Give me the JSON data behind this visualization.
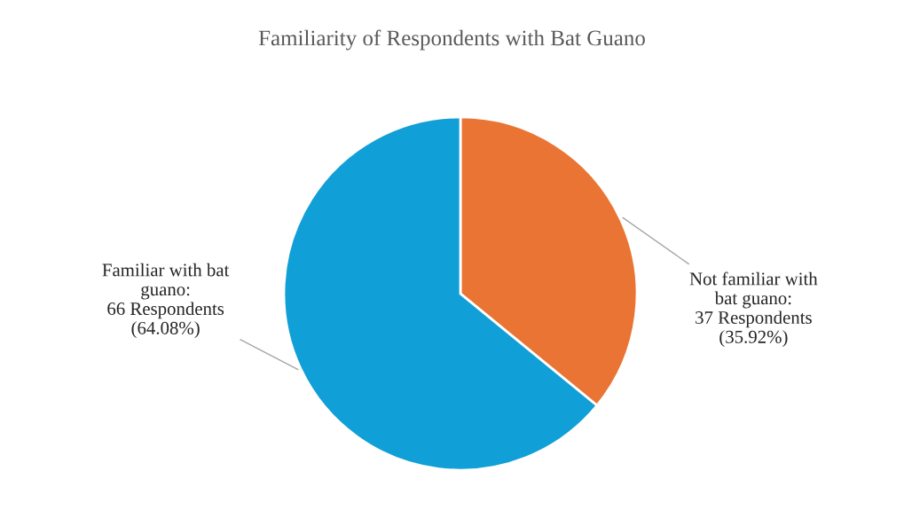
{
  "chart_data": {
    "type": "pie",
    "title": "Familiarity of Respondents with Bat Guano",
    "categories": [
      "Not familiar with\nbat guano",
      "Familiar with bat\nguano"
    ],
    "values": [
      37,
      66
    ],
    "colors": [
      "#ea7434",
      "#109fd6"
    ],
    "value_labels": [
      ":\n37 Respondents\n(35.92%)",
      ":\n66 Respondents\n(64.08%)"
    ],
    "legend": false
  }
}
